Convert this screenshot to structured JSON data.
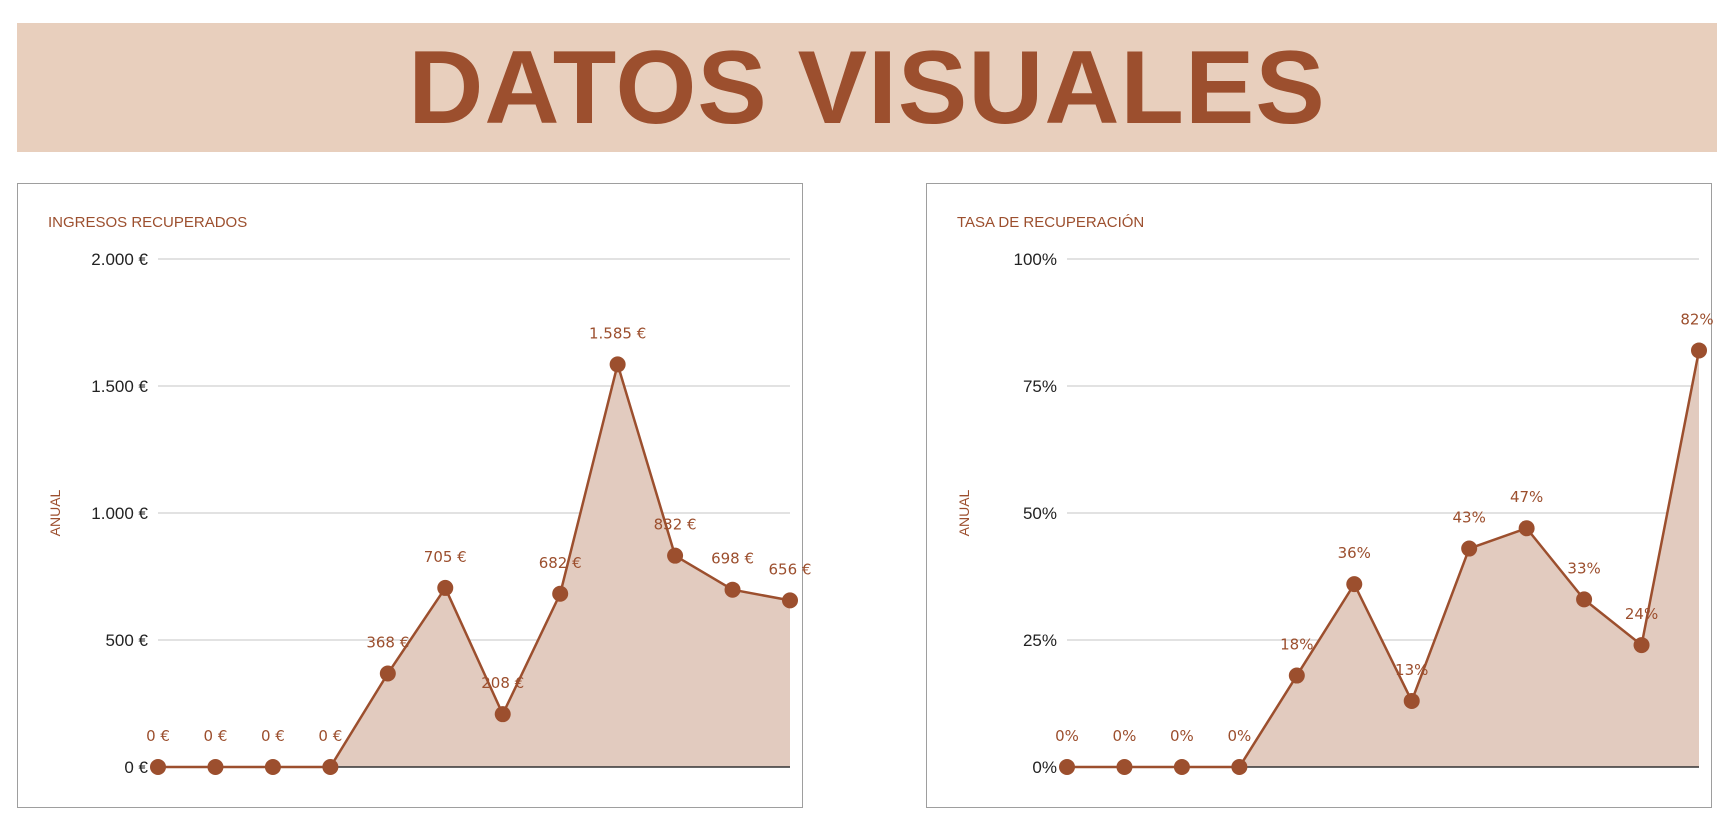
{
  "banner": {
    "title": "DATOS VISUALES"
  },
  "colors": {
    "banner_bg": "#e8cfbd",
    "accent": "#9c4f2e",
    "area_fill": "#e2cbbf",
    "grid": "#d0d0d0",
    "baseline": "#333333"
  },
  "chart_data": [
    {
      "type": "area",
      "title": "INGRESOS RECUPERADOS",
      "ylabel": "ANUAL",
      "xlabel": "",
      "ylim": [
        0,
        2000
      ],
      "y_ticks": [
        0,
        500,
        1000,
        1500,
        2000
      ],
      "y_tick_labels": [
        "0 €",
        "500 €",
        "1.000 €",
        "1.500 €",
        "2.000 €"
      ],
      "grid": true,
      "series": [
        {
          "values": [
            0,
            0,
            0,
            0,
            368,
            705,
            208,
            682,
            1585,
            832,
            698,
            656
          ],
          "labels": [
            "0 €",
            "0 €",
            "0 €",
            "0 €",
            "368 €",
            "705 €",
            "208 €",
            "682 €",
            "1.585 €",
            "832 €",
            "698 €",
            "656 €"
          ]
        }
      ]
    },
    {
      "type": "area",
      "title": "TASA DE RECUPERACIÓN",
      "ylabel": "ANUAL",
      "xlabel": "",
      "ylim": [
        0,
        100
      ],
      "y_ticks": [
        0,
        25,
        50,
        75,
        100
      ],
      "y_tick_labels": [
        "0%",
        "25%",
        "50%",
        "75%",
        "100%"
      ],
      "grid": true,
      "series": [
        {
          "values": [
            0,
            0,
            0,
            0,
            18,
            36,
            13,
            43,
            47,
            33,
            24,
            82
          ],
          "labels": [
            "0%",
            "0%",
            "0%",
            "0%",
            "18%",
            "36%",
            "13%",
            "43%",
            "47%",
            "33%",
            "24%",
            "82%"
          ]
        }
      ]
    }
  ]
}
